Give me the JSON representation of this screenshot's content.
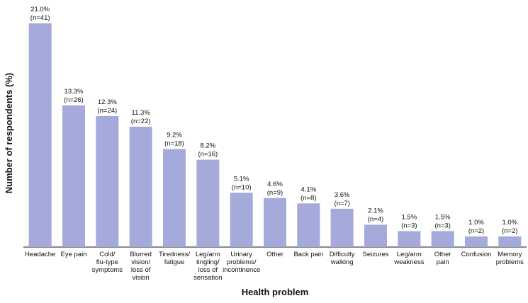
{
  "chart_data": {
    "type": "bar",
    "xlabel": "Health problem",
    "ylabel": "Number of respondents (%)",
    "ylim": [
      0,
      21.0
    ],
    "grid": false,
    "categories": [
      [
        "Headache"
      ],
      [
        "Eye pain"
      ],
      [
        "Cold/",
        "flu-type",
        "symptoms"
      ],
      [
        "Blurred",
        "vision/",
        "loss of",
        "vision"
      ],
      [
        "Tiredness/",
        "fatigue"
      ],
      [
        "Leg/arm",
        "tingling/",
        "loss of",
        "sensation"
      ],
      [
        "Urinary",
        "problems/",
        "incontinence"
      ],
      [
        "Other"
      ],
      [
        "Back pain"
      ],
      [
        "Difficulty",
        "walking"
      ],
      [
        "Seizures"
      ],
      [
        "Leg/arm",
        "weakness"
      ],
      [
        "Other",
        "pain"
      ],
      [
        "Confusion"
      ],
      [
        "Memory",
        "problems"
      ]
    ],
    "values": [
      21.0,
      13.3,
      12.3,
      11.3,
      9.2,
      8.2,
      5.1,
      4.6,
      4.1,
      3.6,
      2.1,
      1.5,
      1.5,
      1.0,
      1.0
    ],
    "value_labels": [
      "21.0%",
      "13.3%",
      "12.3%",
      "11.3%",
      "9.2%",
      "8.2%",
      "5.1%",
      "4.6%",
      "4.1%",
      "3.6%",
      "2.1%",
      "1.5%",
      "1.5%",
      "1.0%",
      "1.0%"
    ],
    "n_labels": [
      "(n=41)",
      "(n=26)",
      "(n=24)",
      "(n=22)",
      "(n=18)",
      "(n=16)",
      "(n=10)",
      "(n=9)",
      "(n=8)",
      "(n=7)",
      "(n=4)",
      "(n=3)",
      "(n=3)",
      "(n=2)",
      "(n=2)"
    ],
    "colors": {
      "bar": "#a4aad9",
      "axis": "#111111"
    }
  }
}
